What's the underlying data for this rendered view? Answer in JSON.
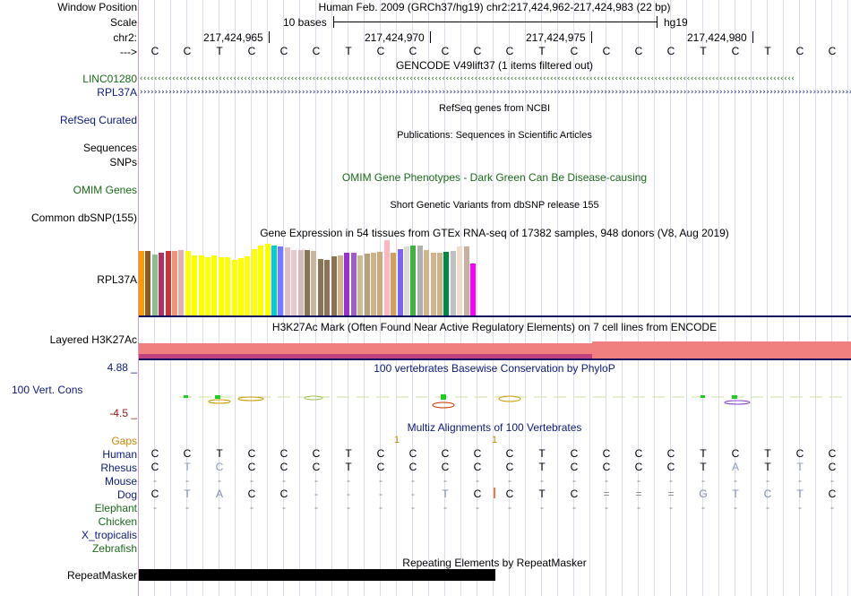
{
  "header": {
    "window_position_label": "Window Position",
    "scale_label": "Scale",
    "chrom_label": "chr2:",
    "strand_label": "--->",
    "assembly_text": "Human Feb. 2009 (GRCh37/hg19)   chr2:217,424,962-217,424,983 (22 bp)",
    "scale_text": "10 bases",
    "db": "hg19",
    "positions": [
      "217,424,965",
      "217,424,970",
      "217,424,975",
      "217,424,980"
    ]
  },
  "sequence": [
    "C",
    "C",
    "T",
    "C",
    "C",
    "C",
    "T",
    "C",
    "C",
    "C",
    "C",
    "C",
    "T",
    "C",
    "C",
    "C",
    "C",
    "T",
    "C",
    "T",
    "C",
    "C"
  ],
  "tracks": {
    "gencode": {
      "title": "GENCODE V49lift37 (1 items filtered out)",
      "genes": [
        "LINC01280",
        "RPL37A"
      ]
    },
    "refseq": {
      "label": "RefSeq Curated",
      "title": "RefSeq genes from NCBI"
    },
    "publications": {
      "label": "Sequences",
      "title": "Publications: Sequences in Scientific Articles"
    },
    "snps": {
      "label": "SNPs"
    },
    "omim": {
      "label": "OMIM Genes",
      "title": "OMIM Gene Phenotypes - Dark Green Can Be Disease-causing"
    },
    "dbsnp": {
      "label": "Common dbSNP(155)",
      "title": "Short Genetic Variants from dbSNP release 155"
    },
    "gtex": {
      "label": "RPL37A",
      "title": "Gene Expression in 54 tissues from GTEx RNA-seq of 17382 samples, 948 donors (V8, Aug 2019)"
    },
    "h3k27ac": {
      "label": "Layered H3K27Ac",
      "title": "H3K27Ac Mark (Often Found Near Active Regulatory Elements) on 7 cell lines from ENCODE"
    },
    "phylop": {
      "label": "100 Vert. Cons",
      "max": "4.88 _",
      "min": "-4.5 _",
      "title": "100 vertebrates Basewise Conservation by PhyloP"
    },
    "multiz": {
      "title": "Multiz Alignments of 100 Vertebrates",
      "gaps_label": "Gaps",
      "gap_marks": [
        "1",
        "1"
      ],
      "species": [
        "Human",
        "Rhesus",
        "Mouse",
        "Dog",
        "Elephant",
        "Chicken",
        "X_tropicalis",
        "Zebrafish"
      ],
      "rows": {
        "Human": [
          "C",
          "C",
          "T",
          "C",
          "C",
          "C",
          "T",
          "C",
          "C",
          "C",
          "C",
          "C",
          "T",
          "C",
          "C",
          "C",
          "C",
          "T",
          "C",
          "T",
          "C",
          "C"
        ],
        "Rhesus": [
          "C",
          "T",
          "C",
          "C",
          "C",
          "C",
          "T",
          "C",
          "C",
          "C",
          "C",
          "C",
          "T",
          "C",
          "C",
          "C",
          "C",
          "T",
          "A",
          "T",
          "T",
          "C"
        ],
        "Mouse": [
          "-",
          "-",
          "-",
          "-",
          "-",
          "-",
          "-",
          "-",
          "-",
          "-",
          "-",
          "-",
          "-",
          "-",
          "-",
          "-",
          "-",
          "-",
          "-",
          "-",
          "-",
          "-"
        ],
        "Dog": [
          "C",
          "T",
          "A",
          "C",
          "C",
          "-",
          "-",
          "-",
          "-",
          "T",
          "C",
          "C",
          "T",
          "C",
          "=",
          "=",
          "=",
          "G",
          "T",
          "C",
          "T",
          "C"
        ],
        "Elephant": [
          "-",
          "-",
          "-",
          "-",
          "-",
          "-",
          "-",
          "-",
          "-",
          "-",
          "-",
          "-",
          "-",
          "-",
          "-",
          "-",
          "-",
          "-",
          "-",
          "-",
          "-",
          "-"
        ]
      }
    },
    "repeatmasker": {
      "label": "RepeatMasker",
      "title": "Repeating Elements by RepeatMasker"
    }
  },
  "gtex_values": [
    72,
    72,
    68,
    70,
    72,
    72,
    73,
    72,
    67,
    67,
    65,
    67,
    65,
    65,
    62,
    64,
    66,
    74,
    78,
    80,
    78,
    77,
    76,
    73,
    73,
    73,
    72,
    63,
    62,
    66,
    67,
    70,
    70,
    67,
    69,
    70,
    71,
    84,
    70,
    74,
    77,
    78,
    78,
    73,
    70,
    70,
    71,
    72,
    77,
    77,
    58
  ],
  "gtex_colors": [
    "#ff9900",
    "#8b5a2b",
    "#8fbc8f",
    "#b03060",
    "#cd3333",
    "#e9967a",
    "#e0b0b0",
    "#ffff00",
    "#ffff00",
    "#ffff00",
    "#ffff00",
    "#ffff00",
    "#ffff00",
    "#ffff00",
    "#ffff00",
    "#ffff00",
    "#ffff00",
    "#ffff00",
    "#ffff00",
    "#ffff00",
    "#00cdcd",
    "#7777ff",
    "#e0c0c0",
    "#e8c8c8",
    "#d8b8b8",
    "#8b7355",
    "#c9b69b",
    "#8b7355",
    "#8b7355",
    "#8b7355",
    "#d2b48c",
    "#9932cc",
    "#a060c0",
    "#cdba96",
    "#b8a07a",
    "#cdb38b",
    "#cdaa7d",
    "#ffb6c1",
    "#d0a060",
    "#7a67ee",
    "#dcdcdc",
    "#44b044",
    "#b0b0b0",
    "#d2b48c",
    "#d2b48c",
    "#cdb38b",
    "#008b45",
    "#c0c0c0",
    "#eeddcc",
    "#c8b0a0",
    "#ff00ff"
  ]
}
